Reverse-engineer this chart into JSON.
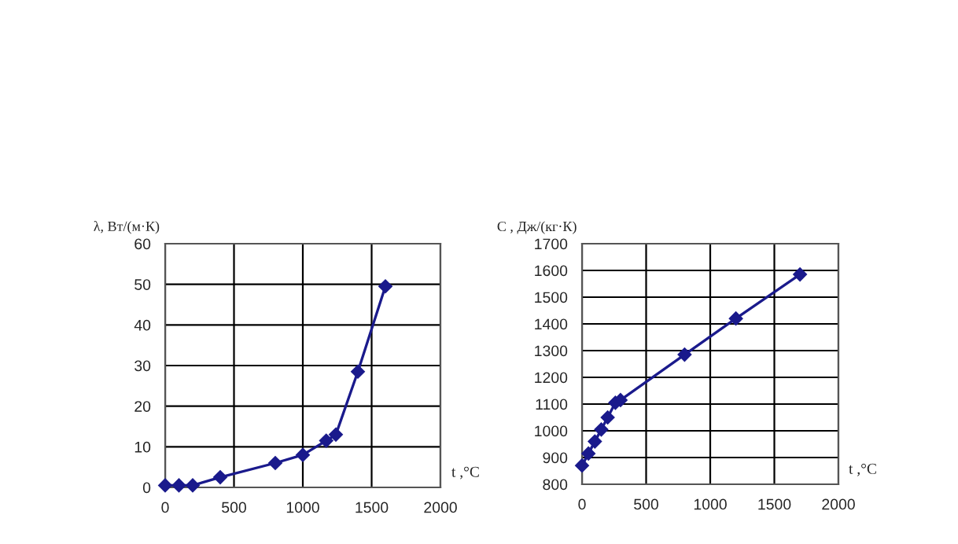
{
  "chart_data": [
    {
      "type": "line",
      "ylabel": "λ, Вт/(м·К)",
      "xlabel": "t ,°C",
      "x": [
        0,
        100,
        200,
        400,
        800,
        1000,
        1170,
        1240,
        1400,
        1600
      ],
      "series": [
        {
          "color": "#1a1a8c",
          "values": [
            0.5,
            0.5,
            0.5,
            2.5,
            6,
            8,
            11.5,
            13,
            28.5,
            49.5
          ]
        }
      ],
      "xlim": [
        0,
        2000
      ],
      "xticks": [
        0,
        500,
        1000,
        1500,
        2000
      ],
      "ylim": [
        0,
        60
      ],
      "yticks": [
        0,
        10,
        20,
        30,
        40,
        50,
        60
      ],
      "grid": true,
      "marker": "diamond",
      "line_style": "solid"
    },
    {
      "type": "line",
      "ylabel": "C , Дж/(кг·К)",
      "xlabel": "t ,°C",
      "x": [
        0,
        50,
        100,
        150,
        200,
        260,
        300,
        800,
        1200,
        1700
      ],
      "series": [
        {
          "color": "#1a1a8c",
          "values": [
            870,
            915,
            960,
            1005,
            1050,
            1105,
            1115,
            1285,
            1420,
            1585
          ]
        }
      ],
      "xlim": [
        0,
        2000
      ],
      "xticks": [
        0,
        500,
        1000,
        1500,
        2000
      ],
      "ylim": [
        800,
        1700
      ],
      "yticks": [
        800,
        900,
        1000,
        1100,
        1200,
        1300,
        1400,
        1500,
        1600,
        1700
      ],
      "grid": true,
      "marker": "diamond",
      "line_style": "solid"
    }
  ]
}
